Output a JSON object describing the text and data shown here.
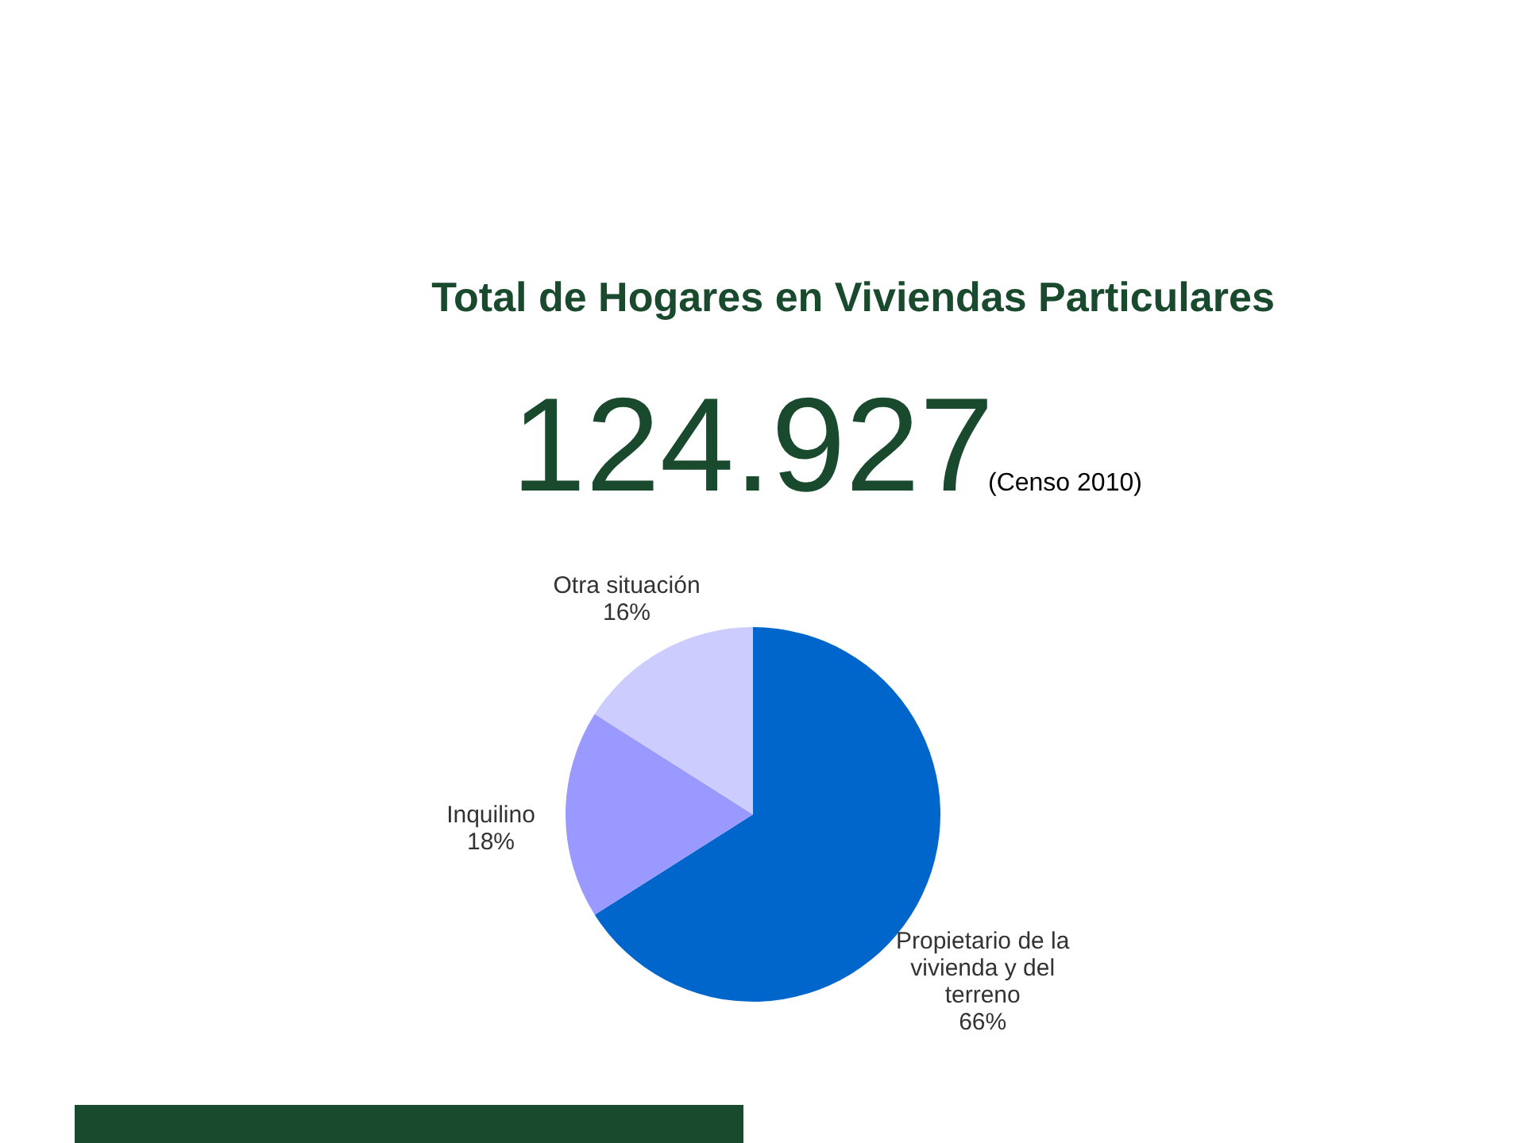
{
  "chart_data": {
    "type": "pie",
    "title": "Total de Hogares en Viviendas Particulares",
    "subtitle": "124.927",
    "annotations": [
      "(Censo 2010)"
    ],
    "categories": [
      "Propietario de la vivienda y del terreno",
      "Inquilino",
      "Otra situación"
    ],
    "values": [
      66,
      18,
      16
    ],
    "value_labels": [
      "66%",
      "18%",
      "16%"
    ],
    "colors": [
      "#0066cc",
      "#9999ff",
      "#ccccff"
    ]
  }
}
